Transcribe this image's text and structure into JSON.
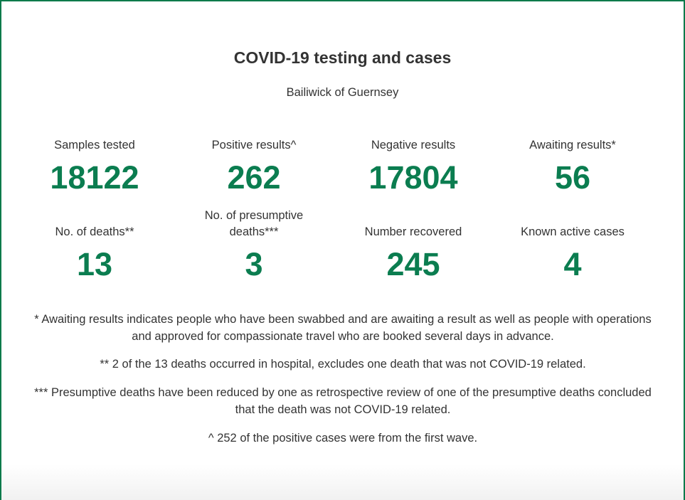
{
  "header": {
    "title": "COVID-19 testing and cases",
    "subtitle": "Bailiwick of Guernsey"
  },
  "stats": [
    {
      "label": "Samples tested",
      "value": 18122
    },
    {
      "label": "Positive results^",
      "value": 262
    },
    {
      "label": "Negative results",
      "value": 17804
    },
    {
      "label": "Awaiting results*",
      "value": 56
    },
    {
      "label": "No. of deaths**",
      "value": 13
    },
    {
      "label": "No. of presumptive deaths***",
      "value": 3
    },
    {
      "label": "Number recovered",
      "value": 245
    },
    {
      "label": "Known active cases",
      "value": 4
    }
  ],
  "notes": [
    "* Awaiting results indicates people who have been swabbed and are awaiting a result as well as people with operations and approved for compassionate travel who are booked several days in advance.",
    "** 2 of the 13 deaths occurred in hospital, excludes one death that was not COVID-19 related.",
    "*** Presumptive deaths have been reduced by one as retrospective review of one of the presumptive deaths concluded that the death was not COVID-19 related.",
    "^ 252 of the positive cases were from the first wave."
  ]
}
